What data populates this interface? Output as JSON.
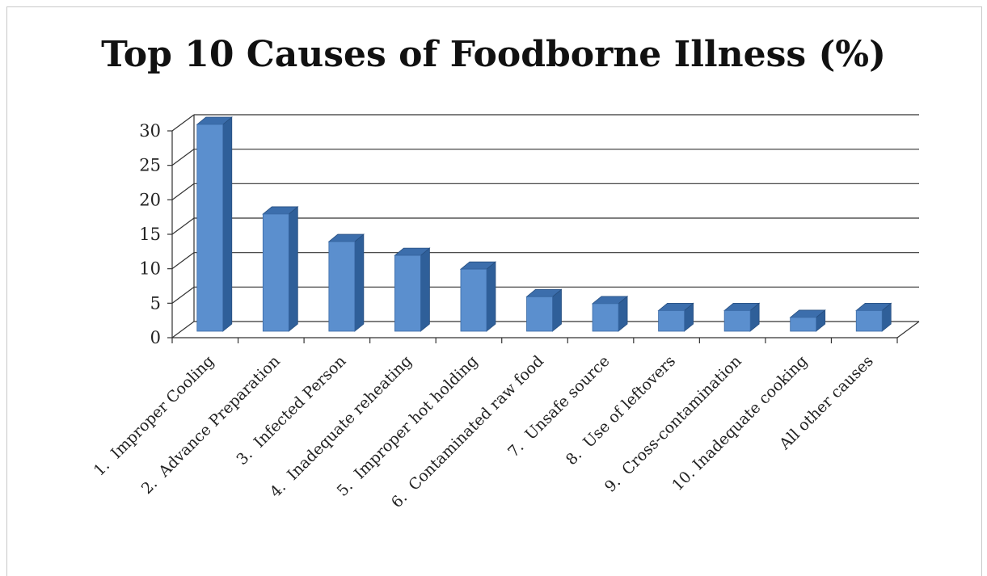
{
  "chart_data": {
    "type": "bar",
    "title": "Top 10 Causes of Foodborne Illness (%)",
    "xlabel": "",
    "ylabel": "",
    "ylim": [
      0,
      30
    ],
    "yticks": [
      0,
      5,
      10,
      15,
      20,
      25,
      30
    ],
    "grid": true,
    "style": "3d-column",
    "bar_color": "#5b8fce",
    "categories": [
      "1.  Improper Cooling",
      "2.  Advance Preparation",
      "3.  Infected Person",
      "4.  Inadequate reheating",
      "5.  Improper hot holding",
      "6.  Contaminated raw food",
      "7.  Unsafe source",
      "8.  Use of leftovers",
      "9.  Cross-contamination",
      "10. Inadequate cooking",
      "All other causes"
    ],
    "values": [
      30,
      17,
      13,
      11,
      9,
      5,
      4,
      3,
      3,
      2,
      3
    ]
  }
}
